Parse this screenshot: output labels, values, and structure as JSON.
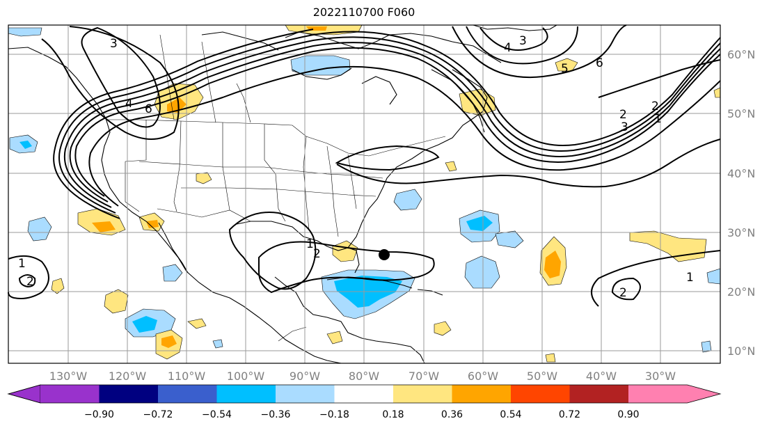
{
  "title": "2022110700 F060",
  "map": {
    "lat_labels": [
      "60°N",
      "50°N",
      "40°N",
      "30°N",
      "20°N",
      "10°N"
    ],
    "lon_labels": [
      "130°W",
      "120°W",
      "110°W",
      "100°W",
      "90°W",
      "80°W",
      "70°W",
      "60°W",
      "50°W",
      "40°W",
      "30°W"
    ],
    "grid_color": "#9a9a9a",
    "contour_color": "#000000",
    "contour_labels": [
      "3",
      "4",
      "6",
      "3",
      "4",
      "5",
      "6",
      "2",
      "1",
      "2",
      "3",
      "2",
      "1",
      "2",
      "1",
      "2",
      "1"
    ],
    "marker": "storm-center-dot"
  },
  "colorbar": {
    "ticks": [
      "−0.90",
      "−0.72",
      "−0.54",
      "−0.36",
      "−0.18",
      "0.18",
      "0.36",
      "0.54",
      "0.72",
      "0.90"
    ],
    "colors": [
      "#9932cc",
      "#000080",
      "#3a5fcd",
      "#00bfff",
      "#aadcff",
      "#ffffff",
      "#ffe680",
      "#ffa500",
      "#ff4500",
      "#b22222",
      "#ff80b0"
    ]
  }
}
